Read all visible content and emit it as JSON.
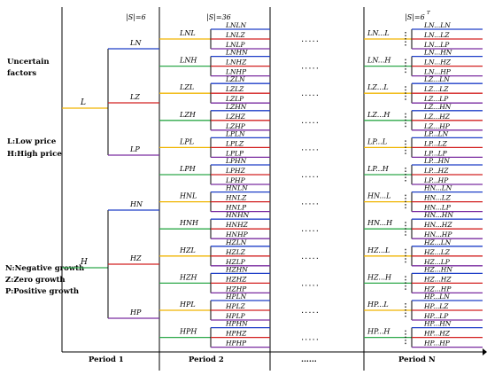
{
  "headers": {
    "p1": "|S|=6",
    "p2": "|S|=36",
    "pn": "|S|=6",
    "pn_sup": "T"
  },
  "legend": {
    "uncertain": [
      "Uncertain",
      "factors"
    ],
    "price": [
      "L:Low price",
      "H:High price"
    ],
    "growth": [
      "N:Negative growth",
      "Z:Zero growth",
      "P:Positive growth"
    ]
  },
  "periods": {
    "p1": "Period 1",
    "p2": "Period 2",
    "gap": "......",
    "pn": "Period N"
  },
  "gap_dots": ".....",
  "roots": [
    "L",
    "H"
  ],
  "period1_nodes": [
    "LN",
    "LZ",
    "LP",
    "HN",
    "HZ",
    "HP"
  ],
  "period2_nodes": [
    "LNL",
    "LNH",
    "LZL",
    "LZH",
    "LPL",
    "LPH",
    "HNL",
    "HNH",
    "HZL",
    "HZH",
    "HPL",
    "HPH"
  ],
  "period2_leaves": [
    [
      "LNLN",
      "LNLZ",
      "LNLP"
    ],
    [
      "LNHN",
      "LNHZ",
      "LNHP"
    ],
    [
      "LZLN",
      "LZLZ",
      "LZLP"
    ],
    [
      "LZHN",
      "LZHZ",
      "LZHP"
    ],
    [
      "LPLN",
      "LPLZ",
      "LPLP"
    ],
    [
      "LPHN",
      "LPHZ",
      "LPHP"
    ],
    [
      "HNLN",
      "HNLZ",
      "HNLP"
    ],
    [
      "HNHN",
      "HNHZ",
      "HNHP"
    ],
    [
      "HZLN",
      "HZLZ",
      "HZLP"
    ],
    [
      "HZHN",
      "HZHZ",
      "HZHP"
    ],
    [
      "HPLN",
      "HPLZ",
      "HPLP"
    ],
    [
      "HPHN",
      "HPHZ",
      "HPHP"
    ]
  ],
  "periodN_nodes": [
    "LN...L",
    "LN...H",
    "LZ...L",
    "LZ...H",
    "LP...L",
    "LP...H",
    "HN...L",
    "HN...H",
    "HZ...L",
    "HZ...H",
    "HP...L",
    "HP...H"
  ],
  "periodN_leaves": [
    [
      "LN...LN",
      "LN...LZ",
      "LN...LP"
    ],
    [
      "LN...HN",
      "LN...HZ",
      "LN...HP"
    ],
    [
      "LZ...LN",
      "LZ...LZ",
      "LZ...LP"
    ],
    [
      "LZ...HN",
      "LZ...HZ",
      "LZ...HP"
    ],
    [
      "LP...LN",
      "LP...LZ",
      "LP...LP"
    ],
    [
      "LP...HN",
      "LP...HZ",
      "LP...HP"
    ],
    [
      "HN...LN",
      "HN...LZ",
      "HN...LP"
    ],
    [
      "HN...HN",
      "HN...HZ",
      "HN...HP"
    ],
    [
      "HZ...LN",
      "HZ...LZ",
      "HZ...LP"
    ],
    [
      "HZ...HN",
      "HZ...HZ",
      "HZ...HP"
    ],
    [
      "HP...LN",
      "HP...LZ",
      "HP...LP"
    ],
    [
      "HP...HN",
      "HP...HZ",
      "HP...HP"
    ]
  ],
  "colors": {
    "L": "#f0b400",
    "H": "#2ea84a",
    "N": "#1f3fc8",
    "Z": "#d22020",
    "P": "#7a2ca0",
    "axis": "#000000"
  }
}
